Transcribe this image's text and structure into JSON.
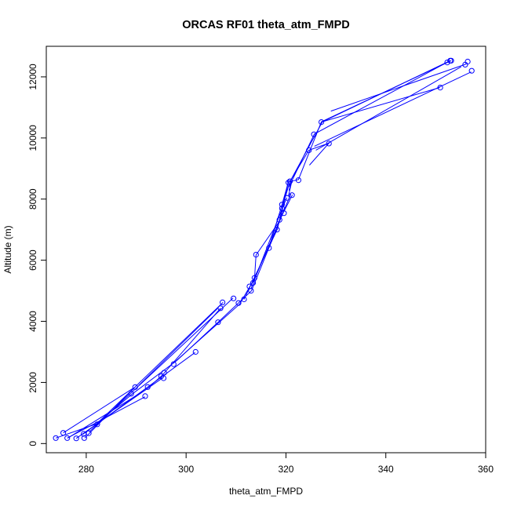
{
  "chart_data": {
    "type": "line",
    "title": "ORCAS RF01 theta_atm_FMPD",
    "xlabel": "theta_atm_FMPD",
    "ylabel": "Altitude (m)",
    "xlim": [
      272,
      360
    ],
    "ylim": [
      -300,
      13000
    ],
    "x_ticks": [
      280,
      300,
      320,
      340,
      360
    ],
    "y_ticks": [
      0,
      2000,
      4000,
      6000,
      8000,
      10000,
      12000
    ],
    "x_tick_labels": [
      "280",
      "300",
      "320",
      "340",
      "360"
    ],
    "y_tick_labels": [
      "0",
      "2000",
      "4000",
      "6000",
      "8000",
      "10000",
      "12000"
    ],
    "grid": false,
    "legend": "none",
    "series": [
      {
        "color": "#0000ff",
        "marker": "open-circle",
        "points": [
          [
            273.9,
            180
          ],
          [
            275.4,
            350
          ],
          [
            276.2,
            180
          ],
          [
            278,
            170
          ],
          [
            279.5,
            320
          ],
          [
            279.6,
            180
          ],
          [
            280.5,
            340
          ],
          [
            282.2,
            630
          ],
          [
            289,
            1630
          ],
          [
            289.8,
            1850
          ],
          [
            291.8,
            1550
          ],
          [
            292.3,
            1850
          ],
          [
            295,
            2200
          ],
          [
            295.5,
            2140
          ],
          [
            295.6,
            2320
          ],
          [
            297.5,
            2600
          ],
          [
            301.9,
            3000
          ],
          [
            306.4,
            3970
          ],
          [
            306.9,
            4430
          ],
          [
            307.3,
            4620
          ],
          [
            309.5,
            4750
          ],
          [
            310.5,
            4600
          ],
          [
            311.6,
            4720
          ],
          [
            312.7,
            5140
          ],
          [
            313,
            5000
          ],
          [
            313.4,
            5260
          ],
          [
            313.7,
            5420
          ],
          [
            314,
            6180
          ],
          [
            316.6,
            6400
          ],
          [
            318.2,
            7000
          ],
          [
            318.7,
            7320
          ],
          [
            319.2,
            7700
          ],
          [
            319.2,
            7820
          ],
          [
            319.6,
            7540
          ],
          [
            320.2,
            8040
          ],
          [
            320.5,
            8540
          ],
          [
            320.8,
            8580
          ],
          [
            321.2,
            8130
          ],
          [
            322.5,
            8620
          ],
          [
            324.6,
            9600
          ],
          [
            325.6,
            10120
          ],
          [
            327.1,
            10520
          ],
          [
            328.6,
            9820
          ],
          [
            350.9,
            11650
          ],
          [
            352.3,
            12470
          ],
          [
            352.9,
            12530
          ],
          [
            353.1,
            12530
          ],
          [
            355.9,
            12400
          ],
          [
            356.4,
            12500
          ],
          [
            357.2,
            12200
          ]
        ],
        "segments": [
          [
            [
              273.9,
              180
            ],
            [
              282,
              640
            ],
            [
              289.2,
              1620
            ],
            [
              298.1,
              2710
            ],
            [
              306.6,
              4000
            ],
            [
              313.1,
              5000
            ],
            [
              316.5,
              6370
            ],
            [
              318.9,
              7650
            ],
            [
              320.3,
              8450
            ]
          ],
          [
            [
              275.4,
              350
            ],
            [
              289.5,
              1820
            ]
          ],
          [
            [
              276.2,
              180
            ],
            [
              291.8,
              1530
            ]
          ],
          [
            [
              276.3,
              180
            ],
            [
              292.2,
              1790
            ],
            [
              295.3,
              2250
            ],
            [
              306.9,
              4430
            ]
          ],
          [
            [
              278,
              170
            ],
            [
              295.4,
              2160
            ]
          ],
          [
            [
              279.3,
              300
            ],
            [
              301.8,
              2980
            ]
          ],
          [
            [
              279.7,
              180
            ],
            [
              289.8,
              1850
            ]
          ],
          [
            [
              280.6,
              380
            ],
            [
              309.4,
              4760
            ]
          ],
          [
            [
              282,
              630
            ],
            [
              307.4,
              4620
            ]
          ],
          [
            [
              290.5,
              1900
            ],
            [
              306.3,
              4420
            ]
          ],
          [
            [
              297.6,
              2650
            ],
            [
              310.7,
              4560
            ],
            [
              313.7,
              5400
            ],
            [
              314,
              6170
            ],
            [
              318.8,
              7300
            ],
            [
              320.5,
              8560
            ],
            [
              322.5,
              8640
            ],
            [
              327.1,
              10530
            ],
            [
              353.1,
              12530
            ]
          ],
          [
            [
              311.6,
              4720
            ],
            [
              318.3,
              7020
            ],
            [
              320.5,
              8600
            ]
          ],
          [
            [
              313.4,
              5270
            ],
            [
              319.3,
              7500
            ],
            [
              321.3,
              8140
            ]
          ],
          [
            [
              313,
              5060
            ],
            [
              319.5,
              7800
            ],
            [
              320.2,
              8050
            ]
          ],
          [
            [
              320.5,
              8100
            ],
            [
              321.2,
              8600
            ],
            [
              320.6,
              8280
            ]
          ],
          [
            [
              316.6,
              6400
            ],
            [
              319.5,
              7600
            ],
            [
              321,
              8170
            ]
          ],
          [
            [
              319.3,
              7760
            ],
            [
              320.8,
              8570
            ],
            [
              324.6,
              9600
            ],
            [
              328.6,
              9830
            ],
            [
              324.7,
              9110
            ]
          ],
          [
            [
              320.6,
              8400
            ],
            [
              325.7,
              10130
            ],
            [
              352.3,
              12480
            ]
          ],
          [
            [
              320.7,
              8540
            ],
            [
              327.3,
              10530
            ],
            [
              350.8,
              11650
            ]
          ],
          [
            [
              325.7,
              9730
            ],
            [
              357.1,
              12160
            ]
          ],
          [
            [
              326,
              9600
            ],
            [
              355.1,
              12330
            ]
          ],
          [
            [
              329,
              10880
            ],
            [
              356.1,
              12420
            ]
          ],
          [
            [
              327.2,
              10520
            ],
            [
              352.9,
              12530
            ]
          ]
        ]
      }
    ]
  }
}
